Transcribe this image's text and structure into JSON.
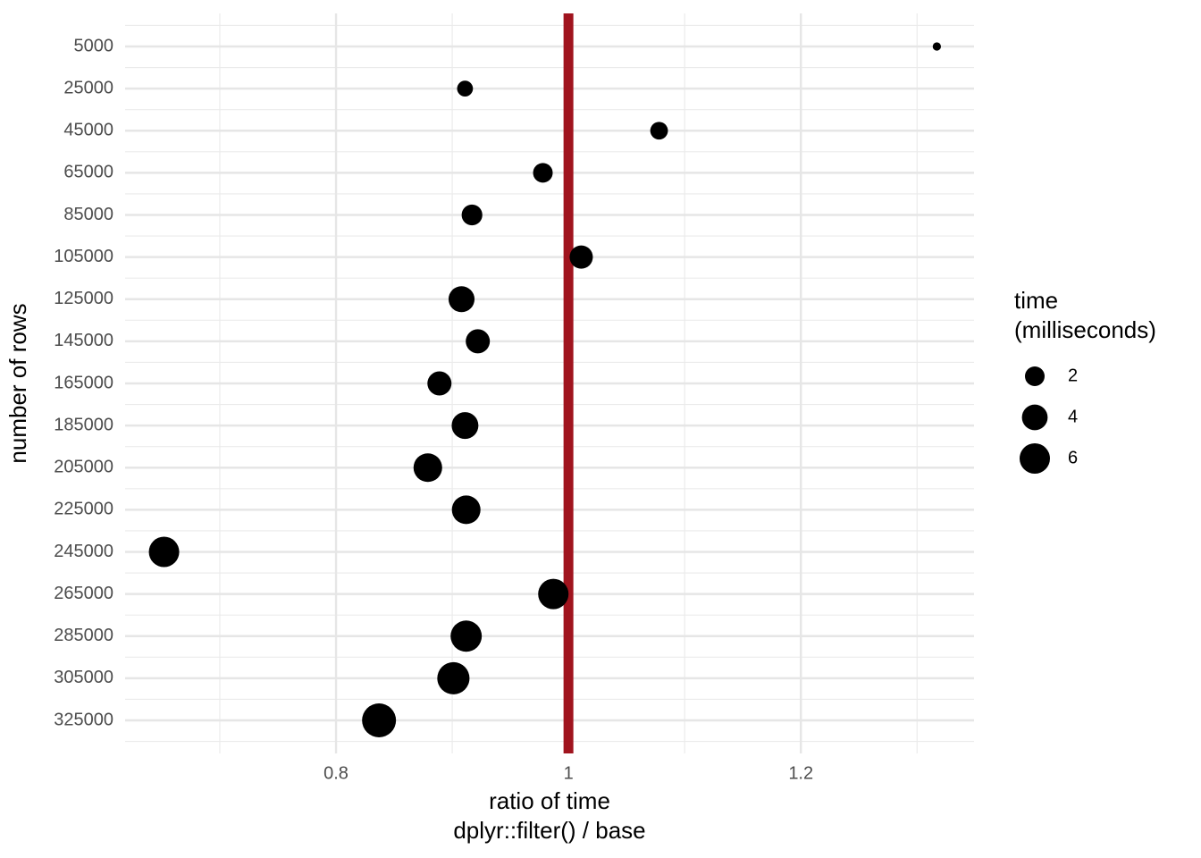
{
  "chart_data": {
    "type": "scatter",
    "x_label": [
      "ratio of time",
      "dplyr::filter() / base"
    ],
    "y_label": "number of rows",
    "categories": [
      "5000",
      "25000",
      "45000",
      "65000",
      "85000",
      "105000",
      "125000",
      "145000",
      "165000",
      "185000",
      "205000",
      "225000",
      "245000",
      "265000",
      "285000",
      "305000",
      "325000"
    ],
    "series": [
      {
        "color": "#000000",
        "values": [
          1.317,
          0.911,
          1.078,
          0.978,
          0.917,
          1.011,
          0.908,
          0.922,
          0.889,
          0.911,
          0.879,
          0.912,
          0.652,
          0.987,
          0.912,
          0.901,
          0.837
        ],
        "sizes": [
          0.1,
          1.1,
          1.5,
          2.0,
          2.3,
          3.1,
          4.1,
          3.4,
          3.4,
          4.4,
          5.2,
          5.2,
          6.0,
          6.0,
          6.4,
          6.9,
          7.8
        ]
      }
    ],
    "xlim": [
      0.6185,
      1.349
    ],
    "xticks": [
      0.8,
      1.0,
      1.2
    ],
    "reference_line": {
      "value": 1.0,
      "color": "#a0141e"
    },
    "grid": true,
    "legend": {
      "title": [
        "time",
        "(milliseconds)"
      ],
      "sizes": [
        2,
        4,
        6
      ],
      "position": "right"
    }
  }
}
